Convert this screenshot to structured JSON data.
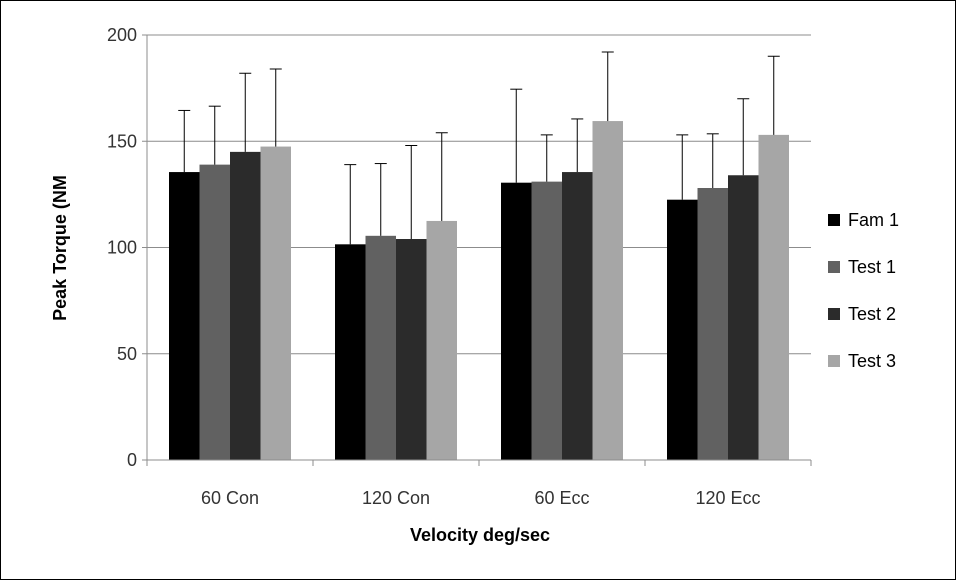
{
  "chart_data": {
    "type": "bar",
    "title": "",
    "xlabel": "Velocity deg/sec",
    "ylabel": "Peak Torque (NM",
    "ylim": [
      0,
      200
    ],
    "yticks": [
      0,
      50,
      100,
      150,
      200
    ],
    "grid": "horizontal",
    "legend_position": "right",
    "error_bars": "upper",
    "categories": [
      "60 Con",
      "120 Con",
      "60 Ecc",
      "120 Ecc"
    ],
    "series": [
      {
        "name": "Fam 1",
        "color": "#000000",
        "values": [
          135.5,
          101.5,
          130.5,
          122.5
        ],
        "error_upper": [
          164.5,
          139.0,
          174.5,
          153.0
        ]
      },
      {
        "name": "Test 1",
        "color": "#616161",
        "values": [
          139,
          105.5,
          131,
          128
        ],
        "error_upper": [
          166.5,
          139.5,
          153.0,
          153.5
        ]
      },
      {
        "name": "Test 2",
        "color": "#2b2b2b",
        "values": [
          145,
          104,
          135.5,
          134
        ],
        "error_upper": [
          182.0,
          148.0,
          160.5,
          170.0
        ]
      },
      {
        "name": "Test 3",
        "color": "#a6a6a6",
        "values": [
          147.5,
          112.5,
          159.5,
          153
        ],
        "error_upper": [
          184.0,
          154.0,
          192.0,
          190.0
        ]
      }
    ]
  }
}
